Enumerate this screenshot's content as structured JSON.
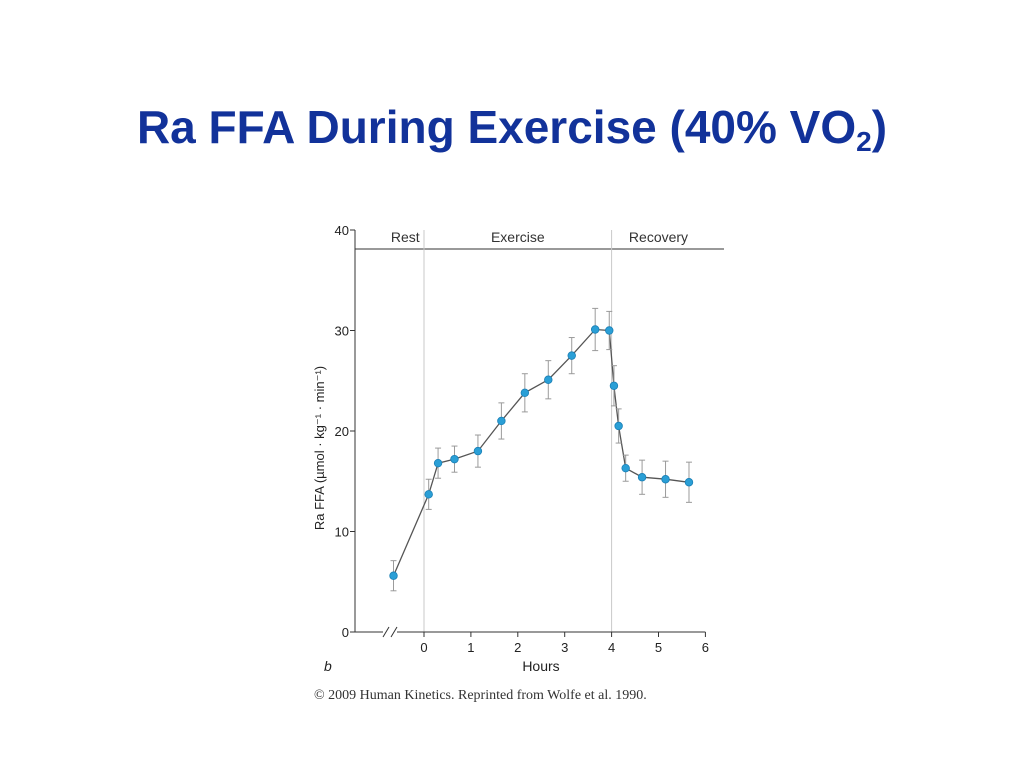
{
  "title": {
    "main": "Ra FFA During Exercise (40% VO",
    "subscript": "2",
    "suffix": ")"
  },
  "credit": "© 2009 Human Kinetics. Reprinted from Wolfe et al. 1990.",
  "colors": {
    "title": "#12329a",
    "marker": "#2a9fd6",
    "line": "#555555",
    "error_bar": "#9a9a9a"
  },
  "chart_data": {
    "type": "line",
    "panel_label": "b",
    "xlabel": "Hours",
    "ylabel": "Ra FFA (µmol · kg⁻¹ · min⁻¹)",
    "xlim": [
      -0.8,
      6
    ],
    "ylim": [
      0,
      40
    ],
    "xticks": [
      0,
      1,
      2,
      3,
      4,
      5,
      6
    ],
    "yticks": [
      0,
      10,
      20,
      30,
      40
    ],
    "axis_break": true,
    "grid": false,
    "phases": [
      {
        "label": "Rest",
        "start": -0.8,
        "end": 0
      },
      {
        "label": "Exercise",
        "start": 0,
        "end": 4
      },
      {
        "label": "Recovery",
        "start": 4,
        "end": 6
      }
    ],
    "series": [
      {
        "x": [
          -0.65,
          0.1,
          0.3,
          0.65,
          1.15,
          1.65,
          2.15,
          2.65,
          3.15,
          3.65,
          3.95,
          4.05,
          4.15,
          4.3,
          4.65,
          5.15,
          5.65
        ],
        "y": [
          5.6,
          13.7,
          16.8,
          17.2,
          18.0,
          21.0,
          23.8,
          25.1,
          27.5,
          30.1,
          30.0,
          24.5,
          20.5,
          16.3,
          15.4,
          15.2,
          14.9
        ],
        "error": [
          1.5,
          1.5,
          1.5,
          1.3,
          1.6,
          1.8,
          1.9,
          1.9,
          1.8,
          2.1,
          1.9,
          2.0,
          1.7,
          1.3,
          1.7,
          1.8,
          2.0
        ]
      }
    ]
  }
}
